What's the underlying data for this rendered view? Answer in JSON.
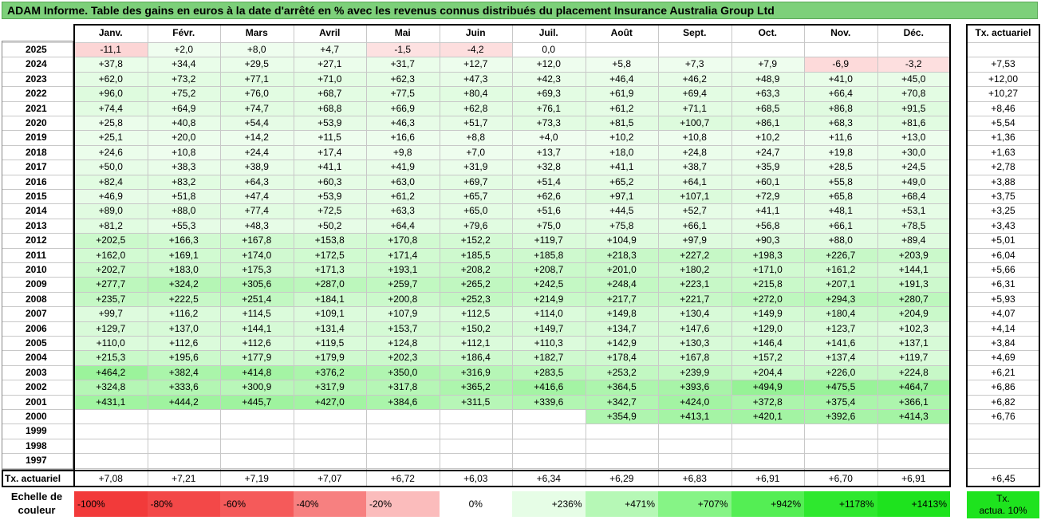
{
  "title": "ADAM Informe. Table des gains en euros à la date d'arrêté en % avec les revenus connus distribués du placement Insurance Australia Group Ltd",
  "chart_data": {
    "type": "table",
    "months": [
      "Janv.",
      "Févr.",
      "Mars",
      "Avril",
      "Mai",
      "Juin",
      "Juil.",
      "Août",
      "Sept.",
      "Oct.",
      "Nov.",
      "Déc."
    ],
    "rate_header": "Tx. actuariel",
    "rows": [
      {
        "year": "2025",
        "values": [
          "-11,1",
          "+2,0",
          "+8,0",
          "+4,7",
          "-1,5",
          "-4,2",
          "0,0",
          "",
          "",
          "",
          "",
          ""
        ],
        "rate": ""
      },
      {
        "year": "2024",
        "values": [
          "+37,8",
          "+34,4",
          "+29,5",
          "+27,1",
          "+31,7",
          "+12,7",
          "+12,0",
          "+5,8",
          "+7,3",
          "+7,9",
          "-6,9",
          "-3,2"
        ],
        "rate": "+7,53"
      },
      {
        "year": "2023",
        "values": [
          "+62,0",
          "+73,2",
          "+77,1",
          "+71,0",
          "+62,3",
          "+47,3",
          "+42,3",
          "+46,4",
          "+46,2",
          "+48,9",
          "+41,0",
          "+45,0"
        ],
        "rate": "+12,00"
      },
      {
        "year": "2022",
        "values": [
          "+96,0",
          "+75,2",
          "+76,0",
          "+68,7",
          "+77,5",
          "+80,4",
          "+69,3",
          "+61,9",
          "+69,4",
          "+63,3",
          "+66,4",
          "+70,8"
        ],
        "rate": "+10,27"
      },
      {
        "year": "2021",
        "values": [
          "+74,4",
          "+64,9",
          "+74,7",
          "+68,8",
          "+66,9",
          "+62,8",
          "+76,1",
          "+61,2",
          "+71,1",
          "+68,5",
          "+86,8",
          "+91,5"
        ],
        "rate": "+8,46"
      },
      {
        "year": "2020",
        "values": [
          "+25,8",
          "+40,8",
          "+54,4",
          "+53,9",
          "+46,3",
          "+51,7",
          "+73,3",
          "+81,5",
          "+100,7",
          "+86,1",
          "+68,3",
          "+81,6"
        ],
        "rate": "+5,54"
      },
      {
        "year": "2019",
        "values": [
          "+25,1",
          "+20,0",
          "+14,2",
          "+11,5",
          "+16,6",
          "+8,8",
          "+4,0",
          "+10,2",
          "+10,8",
          "+10,2",
          "+11,6",
          "+13,0"
        ],
        "rate": "+1,36"
      },
      {
        "year": "2018",
        "values": [
          "+24,6",
          "+10,8",
          "+24,4",
          "+17,4",
          "+9,8",
          "+7,0",
          "+13,7",
          "+18,0",
          "+24,8",
          "+24,7",
          "+19,8",
          "+30,0"
        ],
        "rate": "+1,63"
      },
      {
        "year": "2017",
        "values": [
          "+50,0",
          "+38,3",
          "+38,9",
          "+41,1",
          "+41,9",
          "+31,9",
          "+32,8",
          "+41,1",
          "+38,7",
          "+35,9",
          "+28,5",
          "+24,5"
        ],
        "rate": "+2,78"
      },
      {
        "year": "2016",
        "values": [
          "+82,4",
          "+83,2",
          "+64,3",
          "+60,3",
          "+63,0",
          "+69,7",
          "+51,4",
          "+65,2",
          "+64,1",
          "+60,1",
          "+55,8",
          "+49,0"
        ],
        "rate": "+3,88"
      },
      {
        "year": "2015",
        "values": [
          "+46,9",
          "+51,8",
          "+47,4",
          "+53,9",
          "+61,2",
          "+65,7",
          "+62,6",
          "+97,1",
          "+107,1",
          "+72,9",
          "+65,8",
          "+68,4"
        ],
        "rate": "+3,75"
      },
      {
        "year": "2014",
        "values": [
          "+89,0",
          "+88,0",
          "+77,4",
          "+72,5",
          "+63,3",
          "+65,0",
          "+51,6",
          "+44,5",
          "+52,7",
          "+41,1",
          "+48,1",
          "+53,1"
        ],
        "rate": "+3,25"
      },
      {
        "year": "2013",
        "values": [
          "+81,2",
          "+55,3",
          "+48,3",
          "+50,2",
          "+64,4",
          "+79,6",
          "+75,0",
          "+75,8",
          "+66,1",
          "+56,8",
          "+66,1",
          "+78,5"
        ],
        "rate": "+3,43"
      },
      {
        "year": "2012",
        "values": [
          "+202,5",
          "+166,3",
          "+167,8",
          "+153,8",
          "+170,8",
          "+152,2",
          "+119,7",
          "+104,9",
          "+97,9",
          "+90,3",
          "+88,0",
          "+89,4"
        ],
        "rate": "+5,01"
      },
      {
        "year": "2011",
        "values": [
          "+162,0",
          "+169,1",
          "+174,0",
          "+172,5",
          "+171,4",
          "+185,5",
          "+185,8",
          "+218,3",
          "+227,2",
          "+198,3",
          "+226,7",
          "+203,9"
        ],
        "rate": "+6,04"
      },
      {
        "year": "2010",
        "values": [
          "+202,7",
          "+183,0",
          "+175,3",
          "+171,3",
          "+193,1",
          "+208,2",
          "+208,7",
          "+201,0",
          "+180,2",
          "+171,0",
          "+161,2",
          "+144,1"
        ],
        "rate": "+5,66"
      },
      {
        "year": "2009",
        "values": [
          "+277,7",
          "+324,2",
          "+305,6",
          "+287,0",
          "+259,7",
          "+265,2",
          "+242,5",
          "+248,4",
          "+223,1",
          "+215,8",
          "+207,1",
          "+191,3"
        ],
        "rate": "+6,31"
      },
      {
        "year": "2008",
        "values": [
          "+235,7",
          "+222,5",
          "+251,4",
          "+184,1",
          "+200,8",
          "+252,3",
          "+214,9",
          "+217,7",
          "+221,7",
          "+272,0",
          "+294,3",
          "+280,7"
        ],
        "rate": "+5,93"
      },
      {
        "year": "2007",
        "values": [
          "+99,7",
          "+116,2",
          "+114,5",
          "+109,1",
          "+107,9",
          "+112,5",
          "+114,0",
          "+149,8",
          "+130,4",
          "+149,9",
          "+180,4",
          "+204,9"
        ],
        "rate": "+4,07"
      },
      {
        "year": "2006",
        "values": [
          "+129,7",
          "+137,0",
          "+144,1",
          "+131,4",
          "+153,7",
          "+150,2",
          "+149,7",
          "+134,7",
          "+147,6",
          "+129,0",
          "+123,7",
          "+102,3"
        ],
        "rate": "+4,14"
      },
      {
        "year": "2005",
        "values": [
          "+110,0",
          "+112,6",
          "+112,6",
          "+119,5",
          "+124,8",
          "+112,1",
          "+110,3",
          "+142,9",
          "+130,3",
          "+146,4",
          "+141,6",
          "+137,1"
        ],
        "rate": "+3,84"
      },
      {
        "year": "2004",
        "values": [
          "+215,3",
          "+195,6",
          "+177,9",
          "+179,9",
          "+202,3",
          "+186,4",
          "+182,7",
          "+178,4",
          "+167,8",
          "+157,2",
          "+137,4",
          "+119,7"
        ],
        "rate": "+4,69"
      },
      {
        "year": "2003",
        "values": [
          "+464,2",
          "+382,4",
          "+414,8",
          "+376,2",
          "+350,0",
          "+316,9",
          "+283,5",
          "+253,2",
          "+239,9",
          "+204,4",
          "+226,0",
          "+224,8"
        ],
        "rate": "+6,21"
      },
      {
        "year": "2002",
        "values": [
          "+324,8",
          "+333,6",
          "+300,9",
          "+317,9",
          "+317,8",
          "+365,2",
          "+416,6",
          "+364,5",
          "+393,6",
          "+494,9",
          "+475,5",
          "+464,7"
        ],
        "rate": "+6,86"
      },
      {
        "year": "2001",
        "values": [
          "+431,1",
          "+444,2",
          "+445,7",
          "+427,0",
          "+384,6",
          "+311,5",
          "+339,6",
          "+342,7",
          "+424,0",
          "+372,8",
          "+375,4",
          "+366,1"
        ],
        "rate": "+6,82"
      },
      {
        "year": "2000",
        "values": [
          "",
          "",
          "",
          "",
          "",
          "",
          "",
          "+354,9",
          "+413,1",
          "+420,1",
          "+392,6",
          "+414,3"
        ],
        "rate": "+6,76"
      },
      {
        "year": "1999",
        "values": [
          "",
          "",
          "",
          "",
          "",
          "",
          "",
          "",
          "",
          "",
          "",
          ""
        ],
        "rate": ""
      },
      {
        "year": "1998",
        "values": [
          "",
          "",
          "",
          "",
          "",
          "",
          "",
          "",
          "",
          "",
          "",
          ""
        ],
        "rate": ""
      },
      {
        "year": "1997",
        "values": [
          "",
          "",
          "",
          "",
          "",
          "",
          "",
          "",
          "",
          "",
          "",
          ""
        ],
        "rate": ""
      }
    ],
    "footer": {
      "label": "Tx. actuariel",
      "values": [
        "+7,08",
        "+7,21",
        "+7,19",
        "+7,07",
        "+6,72",
        "+6,03",
        "+6,34",
        "+6,29",
        "+6,83",
        "+6,91",
        "+6,70",
        "+6,91"
      ],
      "rate": "+6,45"
    },
    "scale": {
      "label_line1": "Echelle de",
      "label_line2": "couleur",
      "steps": [
        {
          "label": "-100%",
          "color": "#f23a3a"
        },
        {
          "label": "-80%",
          "color": "#f34848"
        },
        {
          "label": "-60%",
          "color": "#f55a5a"
        },
        {
          "label": "-40%",
          "color": "#f78080"
        },
        {
          "label": "-20%",
          "color": "#fbbcbc"
        },
        {
          "label": "0%",
          "color": "#ffffff"
        },
        {
          "label": "+236%",
          "color": "#e6fde6"
        },
        {
          "label": "+471%",
          "color": "#b6f8b6"
        },
        {
          "label": "+707%",
          "color": "#86f486"
        },
        {
          "label": "+942%",
          "color": "#54ee54"
        },
        {
          "label": "+1178%",
          "color": "#2ee82e"
        },
        {
          "label": "+1413%",
          "color": "#1ee31e"
        }
      ],
      "legend_line1": "Tx.",
      "legend_line2": "actua. 10%",
      "legend_color": "#1ee31e"
    }
  }
}
